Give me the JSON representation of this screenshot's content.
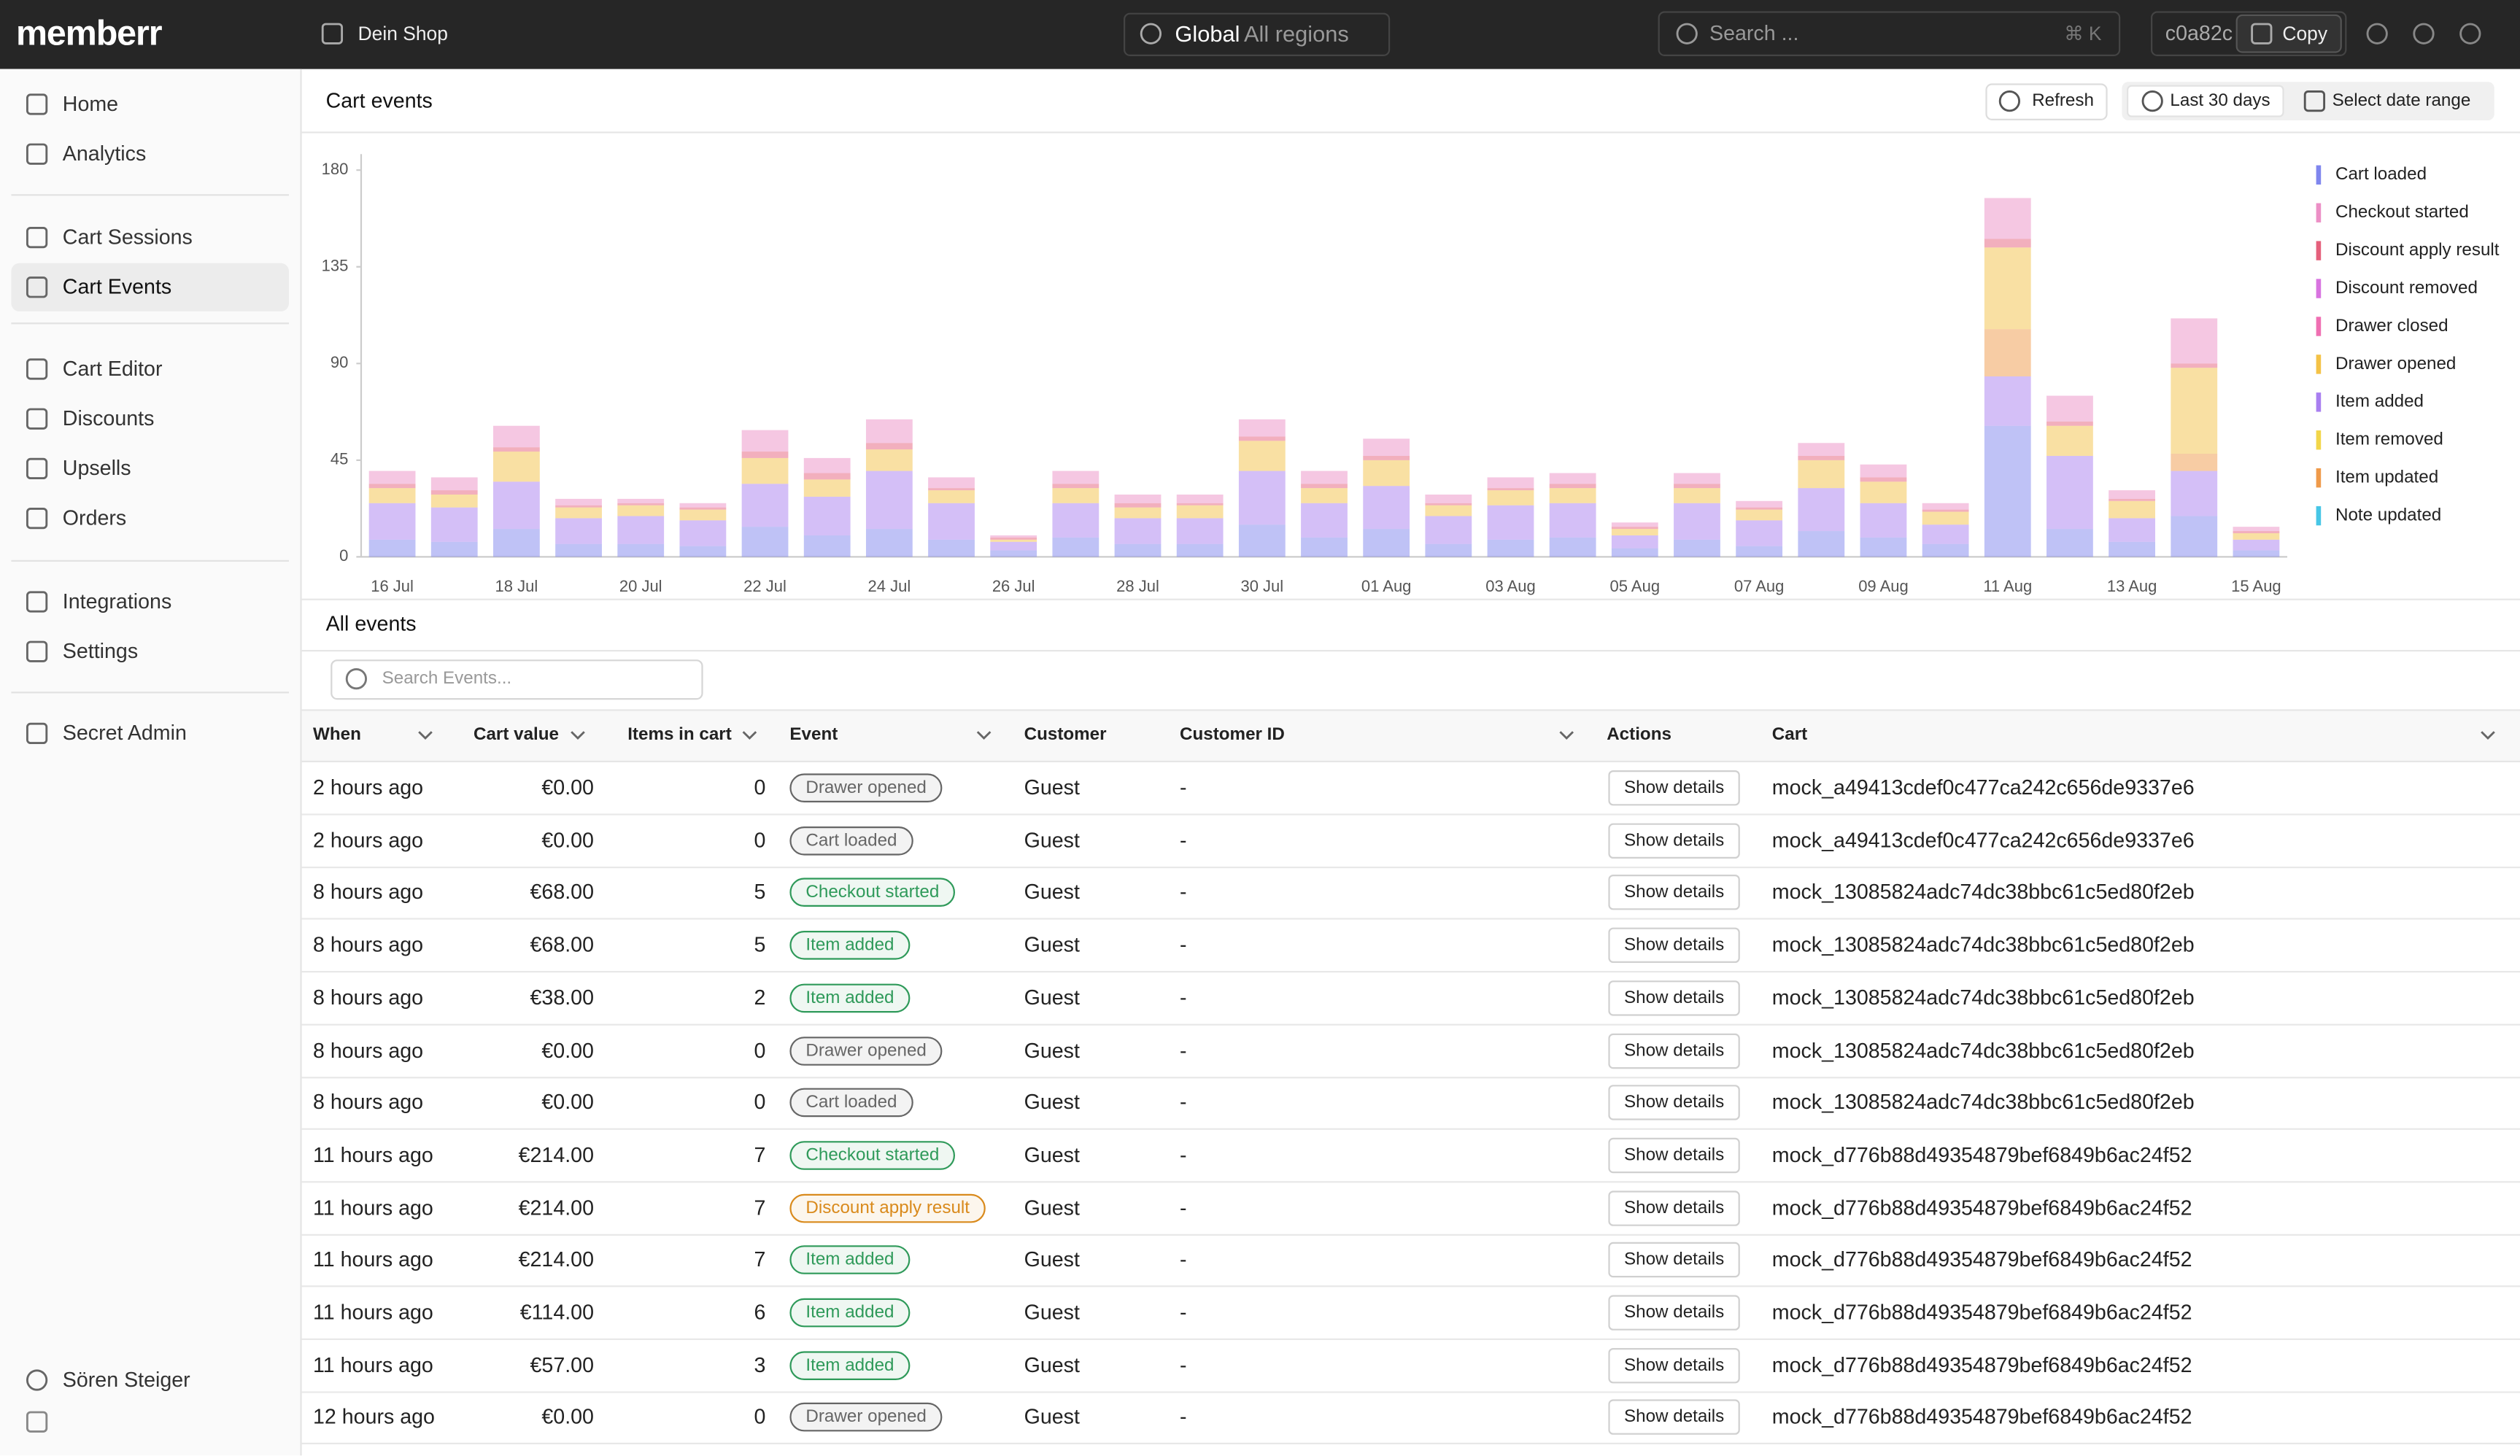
{
  "header": {
    "brand": "memberr",
    "shop": "Dein Shop",
    "scope": "Global",
    "region": "All regions",
    "search": "Search ...",
    "shortcut": "⌘ K",
    "id": "c0a82c",
    "copy": "Copy"
  },
  "sidebar": {
    "nav": [
      "Home",
      "Analytics",
      "Cart Sessions",
      "Cart Events",
      "Cart Editor",
      "Discounts",
      "Upsells",
      "Orders",
      "Integrations",
      "Settings",
      "Secret Admin"
    ],
    "active": 3,
    "user": "Sören Steiger"
  },
  "toolbar": {
    "title": "Cart events",
    "refresh": "Refresh",
    "range": "Last 30 days",
    "select": "Select date range"
  },
  "chart_data": {
    "type": "bar",
    "stacked": true,
    "grid": false,
    "legend": "right",
    "categories": [
      "16 Jul",
      null,
      "18 Jul",
      null,
      "20 Jul",
      null,
      "22 Jul",
      null,
      "24 Jul",
      null,
      "26 Jul",
      null,
      "28 Jul",
      null,
      "30 Jul",
      null,
      "01 Aug",
      null,
      "03 Aug",
      null,
      "05 Aug",
      null,
      "07 Aug",
      null,
      "09 Aug",
      null,
      "11 Aug",
      null,
      "13 Aug",
      null,
      "15 Aug"
    ],
    "ylim": [
      0,
      180
    ],
    "yticks": [
      0,
      45,
      90,
      135,
      180
    ],
    "series": [
      {
        "name": "Cart loaded",
        "color": "#7f86ee",
        "values": [
          8,
          7,
          13,
          6,
          6,
          5,
          14,
          10,
          13,
          8,
          3,
          9,
          6,
          6,
          15,
          9,
          13,
          6,
          8,
          9,
          4,
          8,
          5,
          12,
          9,
          6,
          61,
          13,
          7,
          19,
          3
        ]
      },
      {
        "name": "Checkout started",
        "color": "#ec8fc6",
        "values": [
          6,
          6,
          10,
          3,
          2,
          2,
          10,
          7,
          11,
          5,
          1,
          6,
          4,
          4,
          8,
          6,
          8,
          4,
          5,
          5,
          2,
          5,
          3,
          6,
          6,
          3,
          19,
          12,
          4,
          21,
          2
        ]
      },
      {
        "name": "Discount apply result",
        "color": "#e5607c",
        "values": [
          2,
          2,
          2,
          1,
          1,
          1,
          3,
          3,
          3,
          1,
          1,
          2,
          2,
          1,
          2,
          2,
          2,
          1,
          1,
          2,
          1,
          2,
          1,
          2,
          2,
          1,
          4,
          2,
          1,
          2,
          1
        ]
      },
      {
        "name": "Discount removed",
        "color": "#d873e0",
        "values": [
          0,
          0,
          0,
          0,
          0,
          0,
          0,
          0,
          0,
          0,
          0,
          0,
          0,
          0,
          0,
          0,
          0,
          0,
          0,
          0,
          0,
          0,
          0,
          0,
          0,
          0,
          0,
          0,
          0,
          0,
          0
        ]
      },
      {
        "name": "Drawer closed",
        "color": "#ef6fb2",
        "values": [
          0,
          0,
          0,
          0,
          0,
          0,
          0,
          0,
          0,
          0,
          0,
          0,
          0,
          0,
          0,
          0,
          0,
          0,
          0,
          0,
          0,
          0,
          0,
          0,
          0,
          0,
          0,
          0,
          0,
          0,
          0
        ]
      },
      {
        "name": "Drawer opened",
        "color": "#f4c247",
        "values": [
          7,
          6,
          14,
          5,
          5,
          5,
          12,
          8,
          10,
          6,
          1,
          7,
          5,
          6,
          14,
          7,
          12,
          5,
          7,
          7,
          3,
          7,
          5,
          13,
          10,
          6,
          38,
          14,
          8,
          40,
          3
        ]
      },
      {
        "name": "Item added",
        "color": "#a97ff0",
        "values": [
          17,
          16,
          22,
          12,
          13,
          12,
          20,
          18,
          27,
          17,
          4,
          16,
          12,
          12,
          25,
          16,
          20,
          13,
          16,
          16,
          6,
          17,
          12,
          20,
          16,
          9,
          23,
          34,
          11,
          21,
          5
        ]
      },
      {
        "name": "Item removed",
        "color": "#f2d64a",
        "values": [
          0,
          0,
          0,
          0,
          0,
          0,
          0,
          0,
          0,
          0,
          0,
          0,
          0,
          0,
          0,
          0,
          0,
          0,
          0,
          0,
          0,
          0,
          0,
          0,
          0,
          0,
          0,
          0,
          0,
          0,
          0
        ]
      },
      {
        "name": "Item updated",
        "color": "#ef9a4a",
        "values": [
          0,
          0,
          0,
          0,
          0,
          0,
          0,
          0,
          0,
          0,
          0,
          0,
          0,
          0,
          0,
          0,
          0,
          0,
          0,
          0,
          0,
          0,
          0,
          0,
          0,
          0,
          22,
          0,
          0,
          8,
          0
        ]
      },
      {
        "name": "Note updated",
        "color": "#47c6e6",
        "values": [
          0,
          0,
          0,
          0,
          0,
          0,
          0,
          0,
          0,
          0,
          0,
          0,
          0,
          0,
          0,
          0,
          0,
          0,
          0,
          0,
          0,
          0,
          0,
          0,
          0,
          0,
          0,
          0,
          0,
          0,
          0
        ]
      }
    ]
  },
  "events": {
    "title": "All events",
    "search": "Search Events...",
    "columns": [
      "When",
      "Cart value",
      "Items in cart",
      "Event",
      "Customer",
      "Customer ID",
      "Actions",
      "Cart"
    ],
    "rows": [
      [
        "2 hours ago",
        "€0.00",
        0,
        "Drawer opened",
        "Guest",
        "-",
        "Show details",
        "mock_a49413cdef0c477ca242c656de9337e6"
      ],
      [
        "2 hours ago",
        "€0.00",
        0,
        "Cart loaded",
        "Guest",
        "-",
        "Show details",
        "mock_a49413cdef0c477ca242c656de9337e6"
      ],
      [
        "8 hours ago",
        "€68.00",
        5,
        "Checkout started",
        "Guest",
        "-",
        "Show details",
        "mock_13085824adc74dc38bbc61c5ed80f2eb"
      ],
      [
        "8 hours ago",
        "€68.00",
        5,
        "Item added",
        "Guest",
        "-",
        "Show details",
        "mock_13085824adc74dc38bbc61c5ed80f2eb"
      ],
      [
        "8 hours ago",
        "€38.00",
        2,
        "Item added",
        "Guest",
        "-",
        "Show details",
        "mock_13085824adc74dc38bbc61c5ed80f2eb"
      ],
      [
        "8 hours ago",
        "€0.00",
        0,
        "Drawer opened",
        "Guest",
        "-",
        "Show details",
        "mock_13085824adc74dc38bbc61c5ed80f2eb"
      ],
      [
        "8 hours ago",
        "€0.00",
        0,
        "Cart loaded",
        "Guest",
        "-",
        "Show details",
        "mock_13085824adc74dc38bbc61c5ed80f2eb"
      ],
      [
        "11 hours ago",
        "€214.00",
        7,
        "Checkout started",
        "Guest",
        "-",
        "Show details",
        "mock_d776b88d49354879bef6849b6ac24f52"
      ],
      [
        "11 hours ago",
        "€214.00",
        7,
        "Discount apply result",
        "Guest",
        "-",
        "Show details",
        "mock_d776b88d49354879bef6849b6ac24f52"
      ],
      [
        "11 hours ago",
        "€214.00",
        7,
        "Item added",
        "Guest",
        "-",
        "Show details",
        "mock_d776b88d49354879bef6849b6ac24f52"
      ],
      [
        "11 hours ago",
        "€114.00",
        6,
        "Item added",
        "Guest",
        "-",
        "Show details",
        "mock_d776b88d49354879bef6849b6ac24f52"
      ],
      [
        "11 hours ago",
        "€57.00",
        3,
        "Item added",
        "Guest",
        "-",
        "Show details",
        "mock_d776b88d49354879bef6849b6ac24f52"
      ],
      [
        "12 hours ago",
        "€0.00",
        0,
        "Drawer opened",
        "Guest",
        "-",
        "Show details",
        "mock_d776b88d49354879bef6849b6ac24f52"
      ]
    ],
    "event_colors": [
      "#666666",
      "#666666",
      "#2f9a5a",
      "#2f9a5a",
      "#2f9a5a",
      "#666666",
      "#666666",
      "#2f9a5a",
      "#d98a1c",
      "#2f9a5a",
      "#2f9a5a",
      "#2f9a5a",
      "#666666"
    ]
  }
}
